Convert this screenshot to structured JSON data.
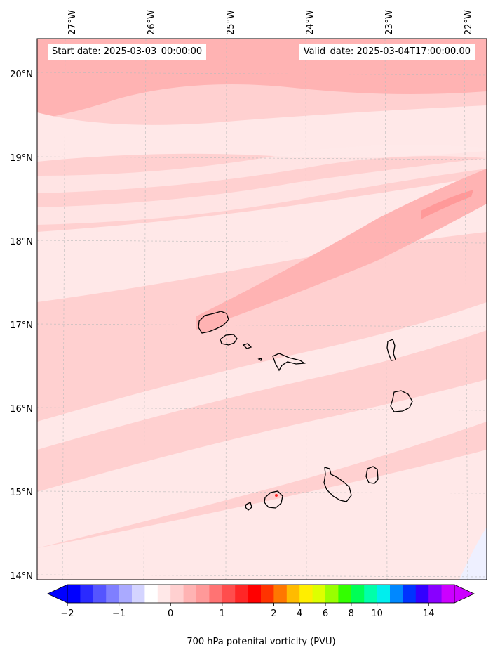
{
  "header": {
    "start_date": "Start date: 2025-03-03_00:00:00",
    "valid_date": "Valid_date: 2025-03-04T17:00:00.00"
  },
  "map": {
    "lon_labels": [
      "27°W",
      "26°W",
      "25°W",
      "24°W",
      "23°W",
      "22°W"
    ],
    "lat_labels": [
      "20°N",
      "19°N",
      "18°N",
      "17°N",
      "16°N",
      "15°N",
      "14°N"
    ],
    "islands": [
      "Santo Antão",
      "São Vicente",
      "Santa Luzia",
      "São Nicolau",
      "Sal",
      "Boa Vista",
      "Brava",
      "Fogo",
      "Santiago",
      "Maio"
    ]
  },
  "colorbar": {
    "title": "700 hPa potenital vorticity (PVU)",
    "tick_labels": [
      "−2",
      "−1",
      "0",
      "1",
      "2",
      "4",
      "6",
      "8",
      "10",
      "14"
    ],
    "colors": [
      "#0000ff",
      "#2a2aff",
      "#5555ff",
      "#7f7fff",
      "#aaaaff",
      "#d4d4ff",
      "#ffffff",
      "#ffe8e8",
      "#ffd0d0",
      "#ffb3b3",
      "#ff9999",
      "#ff7373",
      "#ff4d4d",
      "#ff2626",
      "#ff0000",
      "#ff3300",
      "#ff7700",
      "#ffbb00",
      "#ffee00",
      "#ddff00",
      "#99ff00",
      "#33ff00",
      "#00ff55",
      "#00ffaa",
      "#00eeee",
      "#0088ff",
      "#0033ff",
      "#3300ff",
      "#8800ff",
      "#cc00ff"
    ],
    "extend_min_color": "#0000ff",
    "extend_max_color": "#cc00ff"
  }
}
